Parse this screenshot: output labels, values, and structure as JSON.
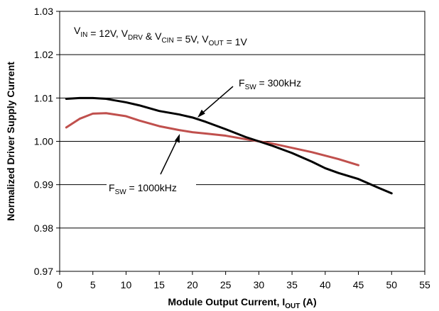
{
  "chart_data": {
    "type": "line",
    "xlabel": {
      "main": "Module Output Current, I",
      "sub": "OUT",
      "suffix": " (A)"
    },
    "ylabel": "Normalized Driver Supply Current",
    "xlim": [
      0,
      55
    ],
    "ylim": [
      0.97,
      1.03
    ],
    "xticks": [
      0,
      5,
      10,
      15,
      20,
      25,
      30,
      35,
      40,
      45,
      50,
      55
    ],
    "yticks": [
      0.97,
      0.98,
      0.99,
      1.0,
      1.01,
      1.02,
      1.03
    ],
    "ytick_labels": [
      "0.97",
      "0.98",
      "0.99",
      "1.00",
      "1.01",
      "1.02",
      "1.03"
    ],
    "grid": true,
    "conditions": [
      {
        "t": "V",
        "s": "IN"
      },
      {
        "t": " = 12V, V",
        "s": "DRV"
      },
      {
        "t": " & V",
        "s": "CIN"
      },
      {
        "t": " = 5V, V",
        "s": "OUT"
      },
      {
        "t": " = 1V",
        "s": ""
      }
    ],
    "series": [
      {
        "name": "F_SW = 300kHz",
        "label": {
          "pre": "F",
          "sub": "SW",
          "post": " = 300kHz"
        },
        "color": "#000000",
        "x": [
          1,
          3,
          5,
          7,
          10,
          12,
          15,
          18,
          20,
          22,
          25,
          28,
          30,
          32,
          35,
          38,
          40,
          42,
          45,
          48,
          50
        ],
        "y": [
          1.0098,
          1.01,
          1.01,
          1.0098,
          1.009,
          1.0083,
          1.007,
          1.0062,
          1.0055,
          1.0045,
          1.0028,
          1.001,
          1.0,
          0.999,
          0.9973,
          0.9953,
          0.9938,
          0.9927,
          0.9913,
          0.9893,
          0.988
        ]
      },
      {
        "name": "F_SW = 1000kHz",
        "label": {
          "pre": "F",
          "sub": "SW",
          "post": " = 1000kHz"
        },
        "color": "#c0504d",
        "x": [
          1,
          3,
          5,
          7,
          10,
          12,
          15,
          18,
          20,
          22,
          25,
          28,
          30,
          32,
          35,
          38,
          40,
          42,
          45
        ],
        "y": [
          1.0032,
          1.0052,
          1.0064,
          1.0065,
          1.0058,
          1.0048,
          1.0035,
          1.0026,
          1.0021,
          1.0018,
          1.0013,
          1.0005,
          1.0,
          0.9995,
          0.9985,
          0.9975,
          0.9967,
          0.9959,
          0.9945
        ]
      }
    ]
  }
}
